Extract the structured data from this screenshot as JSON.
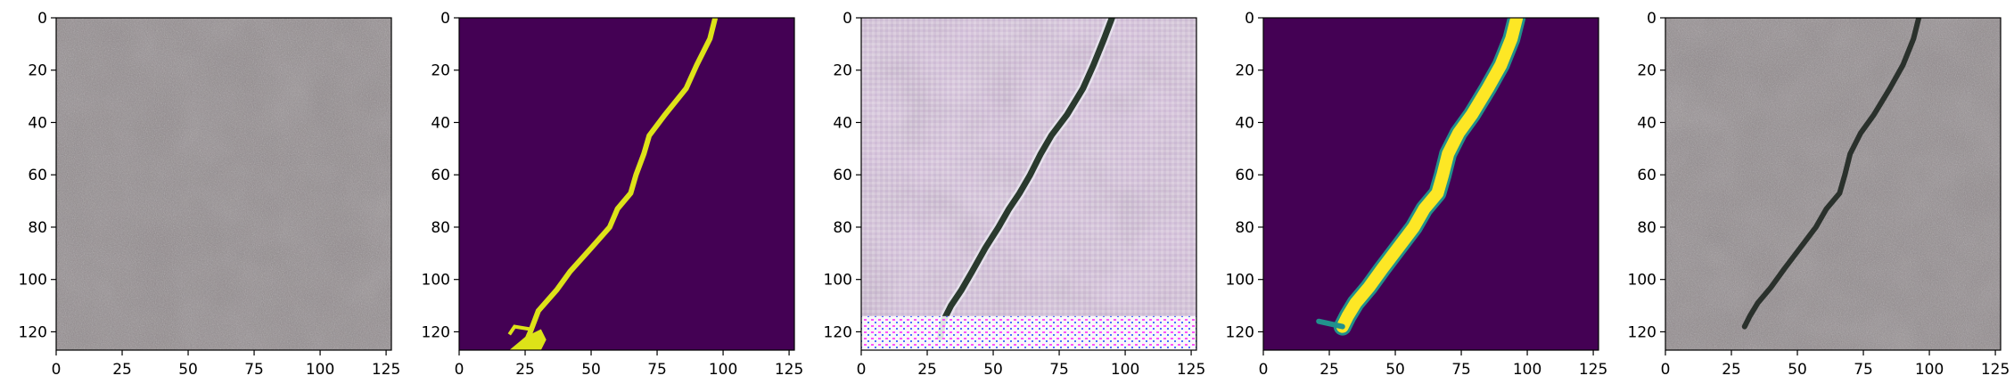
{
  "chart_data": [
    {
      "type": "heatmap",
      "content": "raw concrete surface image",
      "colors": {
        "base": "#8f878a",
        "light": "#b3abad",
        "dark": "#6e6668"
      },
      "xlim": [
        0,
        127
      ],
      "ylim": [
        127,
        0
      ],
      "x_ticks": [
        0,
        25,
        50,
        75,
        100,
        125
      ],
      "y_ticks": [
        0,
        20,
        40,
        60,
        80,
        100,
        120
      ]
    },
    {
      "type": "heatmap",
      "content": "binary crack mask (viridis)",
      "colors": {
        "background": "#440154",
        "crack": "#dde318"
      },
      "crack_path": [
        [
          97,
          0
        ],
        [
          95,
          8
        ],
        [
          90,
          18
        ],
        [
          86,
          27
        ],
        [
          78,
          37
        ],
        [
          72,
          45
        ],
        [
          70,
          52
        ],
        [
          67,
          60
        ],
        [
          65,
          67
        ],
        [
          60,
          73
        ],
        [
          57,
          80
        ],
        [
          50,
          88
        ],
        [
          42,
          97
        ],
        [
          37,
          104
        ],
        [
          30,
          112
        ],
        [
          27,
          120
        ],
        [
          24,
          127
        ]
      ],
      "branch_path": [
        [
          27,
          119
        ],
        [
          21,
          118
        ],
        [
          19,
          121
        ]
      ],
      "xlim": [
        0,
        127
      ],
      "ylim": [
        127,
        0
      ],
      "x_ticks": [
        0,
        25,
        50,
        75,
        100,
        125
      ],
      "y_ticks": [
        0,
        20,
        40,
        60,
        80,
        100,
        120
      ]
    },
    {
      "type": "heatmap",
      "content": "generated image with crack and checkerboard artifacts",
      "colors": {
        "base": "#d9c7de",
        "mid": "#b9a9bd",
        "crack": "#2a3a2e",
        "artifact_magenta": "#ff33ff",
        "artifact_blue": "#3355ff"
      },
      "crack_path": [
        [
          95,
          0
        ],
        [
          92,
          8
        ],
        [
          88,
          18
        ],
        [
          84,
          27
        ],
        [
          78,
          37
        ],
        [
          72,
          45
        ],
        [
          68,
          52
        ],
        [
          64,
          60
        ],
        [
          60,
          67
        ],
        [
          56,
          73
        ],
        [
          52,
          80
        ],
        [
          47,
          88
        ],
        [
          42,
          97
        ],
        [
          38,
          104
        ],
        [
          34,
          110
        ],
        [
          31,
          116
        ],
        [
          30,
          122
        ]
      ],
      "xlim": [
        0,
        127
      ],
      "ylim": [
        127,
        0
      ],
      "x_ticks": [
        0,
        25,
        50,
        75,
        100,
        125
      ],
      "y_ticks": [
        0,
        20,
        40,
        60,
        80,
        100,
        120
      ]
    },
    {
      "type": "heatmap",
      "content": "predicted crack probability map (viridis)",
      "colors": {
        "background": "#440154",
        "edge": "#21918c",
        "crack": "#fde725"
      },
      "crack_path": [
        [
          96,
          0
        ],
        [
          94,
          8
        ],
        [
          90,
          18
        ],
        [
          85,
          27
        ],
        [
          79,
          37
        ],
        [
          74,
          44
        ],
        [
          70,
          52
        ],
        [
          68,
          60
        ],
        [
          66,
          67
        ],
        [
          61,
          73
        ],
        [
          57,
          80
        ],
        [
          51,
          88
        ],
        [
          45,
          96
        ],
        [
          40,
          103
        ],
        [
          35,
          109
        ],
        [
          32,
          114
        ],
        [
          30,
          118
        ]
      ],
      "tail_path": [
        [
          30,
          118
        ],
        [
          21,
          116
        ]
      ],
      "xlim": [
        0,
        127
      ],
      "ylim": [
        127,
        0
      ],
      "x_ticks": [
        0,
        25,
        50,
        75,
        100,
        125
      ],
      "y_ticks": [
        0,
        20,
        40,
        60,
        80,
        100,
        120
      ]
    },
    {
      "type": "heatmap",
      "content": "concrete surface image with synthesized crack",
      "colors": {
        "base": "#8f878a",
        "light": "#b3abad",
        "dark": "#6e6668",
        "crack": "#1e2620"
      },
      "crack_path": [
        [
          96,
          0
        ],
        [
          94,
          8
        ],
        [
          90,
          18
        ],
        [
          85,
          27
        ],
        [
          79,
          37
        ],
        [
          74,
          44
        ],
        [
          70,
          52
        ],
        [
          68,
          60
        ],
        [
          66,
          67
        ],
        [
          61,
          73
        ],
        [
          57,
          80
        ],
        [
          51,
          88
        ],
        [
          45,
          96
        ],
        [
          40,
          103
        ],
        [
          35,
          109
        ],
        [
          32,
          114
        ],
        [
          30,
          118
        ]
      ],
      "xlim": [
        0,
        127
      ],
      "ylim": [
        127,
        0
      ],
      "x_ticks": [
        0,
        25,
        50,
        75,
        100,
        125
      ],
      "y_ticks": [
        0,
        20,
        40,
        60,
        80,
        100,
        120
      ]
    }
  ]
}
